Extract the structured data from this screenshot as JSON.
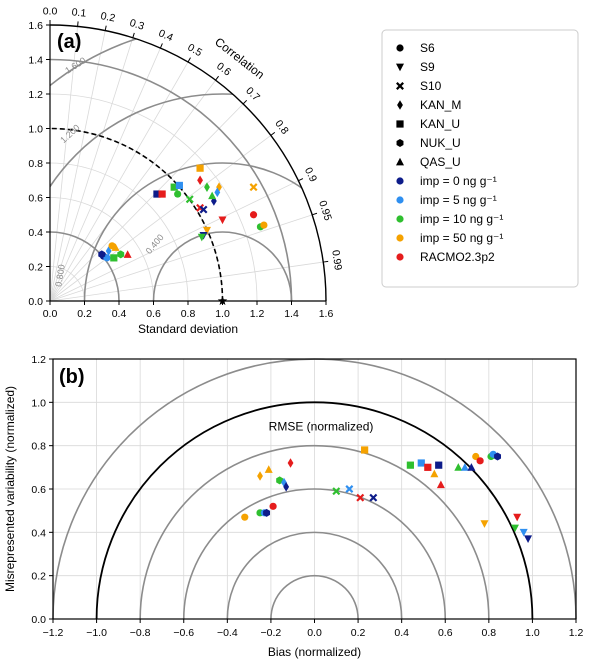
{
  "colors": {
    "imp0": "#0d1c8a",
    "imp5": "#2f8ff0",
    "imp10": "#2fbf2f",
    "imp50": "#f5a200",
    "racmo": "#e51c1c",
    "legend_marker": "#000000",
    "grid": "#d9d9d9",
    "arc": "#8c8c8c"
  },
  "chart_data": [
    {
      "type": "scatter",
      "subtype": "taylor-diagram",
      "panel_label": "(a)",
      "xlabel": "Standard deviation",
      "correlation_label": "Correlation",
      "xlim": [
        0,
        1.6
      ],
      "ylim": [
        0,
        1.6
      ],
      "x_ticks": [
        "0.0",
        "0.2",
        "0.4",
        "0.6",
        "0.8",
        "1.0",
        "1.2",
        "1.4",
        "1.6"
      ],
      "y_ticks": [
        "0.0",
        "0.2",
        "0.4",
        "0.6",
        "0.8",
        "1.0",
        "1.2",
        "1.4",
        "1.6"
      ],
      "correlation_ticks": [
        {
          "r": 0.0,
          "label": "0.0"
        },
        {
          "r": 0.1,
          "label": "0.1"
        },
        {
          "r": 0.2,
          "label": "0.2"
        },
        {
          "r": 0.3,
          "label": "0.3"
        },
        {
          "r": 0.4,
          "label": "0.4"
        },
        {
          "r": 0.5,
          "label": "0.5"
        },
        {
          "r": 0.6,
          "label": "0.6"
        },
        {
          "r": 0.7,
          "label": "0.7"
        },
        {
          "r": 0.8,
          "label": "0.8"
        },
        {
          "r": 0.9,
          "label": "0.9"
        },
        {
          "r": 0.95,
          "label": "0.95"
        },
        {
          "r": 0.99,
          "label": "0.99"
        }
      ],
      "std_arcs": [
        0.4,
        1.4
      ],
      "reference_std": 1.0,
      "rmse_contours": [
        0.4,
        0.8,
        1.2,
        1.6
      ],
      "rmse_labels": [
        {
          "value": 0.4,
          "label": "0.400"
        },
        {
          "value": 0.8,
          "label": "0.800"
        },
        {
          "value": 1.2,
          "label": "1.200"
        },
        {
          "value": 1.6,
          "label": "1.600"
        }
      ],
      "points": [
        {
          "x": 0.31,
          "y": 0.26,
          "shape": "circle",
          "series": "imp0"
        },
        {
          "x": 0.33,
          "y": 0.25,
          "shape": "circle",
          "series": "imp5"
        },
        {
          "x": 0.3,
          "y": 0.27,
          "shape": "hexagon",
          "series": "imp0"
        },
        {
          "x": 0.34,
          "y": 0.29,
          "shape": "diamond",
          "series": "imp5"
        },
        {
          "x": 0.37,
          "y": 0.25,
          "shape": "square",
          "series": "imp10"
        },
        {
          "x": 0.36,
          "y": 0.32,
          "shape": "circle",
          "series": "imp50"
        },
        {
          "x": 0.38,
          "y": 0.31,
          "shape": "triangle",
          "series": "imp50"
        },
        {
          "x": 0.41,
          "y": 0.27,
          "shape": "hexagon",
          "series": "imp10"
        },
        {
          "x": 0.45,
          "y": 0.27,
          "shape": "triangle",
          "series": "racmo"
        },
        {
          "x": 0.62,
          "y": 0.62,
          "shape": "square",
          "series": "imp0"
        },
        {
          "x": 0.65,
          "y": 0.62,
          "shape": "square",
          "series": "racmo"
        },
        {
          "x": 0.72,
          "y": 0.66,
          "shape": "square",
          "series": "imp10"
        },
        {
          "x": 0.75,
          "y": 0.67,
          "shape": "square",
          "series": "imp5"
        },
        {
          "x": 0.74,
          "y": 0.62,
          "shape": "circle",
          "series": "imp10"
        },
        {
          "x": 0.87,
          "y": 0.77,
          "shape": "square",
          "series": "imp50"
        },
        {
          "x": 0.87,
          "y": 0.7,
          "shape": "diamond",
          "series": "racmo"
        },
        {
          "x": 0.81,
          "y": 0.59,
          "shape": "cross",
          "series": "imp10"
        },
        {
          "x": 0.87,
          "y": 0.54,
          "shape": "cross",
          "series": "racmo"
        },
        {
          "x": 0.89,
          "y": 0.53,
          "shape": "cross",
          "series": "imp0"
        },
        {
          "x": 0.91,
          "y": 0.66,
          "shape": "diamond",
          "series": "imp10"
        },
        {
          "x": 0.95,
          "y": 0.58,
          "shape": "diamond",
          "series": "imp0"
        },
        {
          "x": 0.98,
          "y": 0.66,
          "shape": "diamond",
          "series": "imp50"
        },
        {
          "x": 0.97,
          "y": 0.63,
          "shape": "diamond",
          "series": "imp5"
        },
        {
          "x": 0.94,
          "y": 0.61,
          "shape": "triangle",
          "series": "imp10"
        },
        {
          "x": 0.91,
          "y": 0.41,
          "shape": "triangle_down",
          "series": "imp50"
        },
        {
          "x": 0.89,
          "y": 0.38,
          "shape": "triangle_down",
          "series": "imp0"
        },
        {
          "x": 0.88,
          "y": 0.37,
          "shape": "triangle_down",
          "series": "imp10"
        },
        {
          "x": 1.0,
          "y": 0.47,
          "shape": "triangle_down",
          "series": "racmo"
        },
        {
          "x": 1.18,
          "y": 0.66,
          "shape": "cross",
          "series": "imp50"
        },
        {
          "x": 1.18,
          "y": 0.5,
          "shape": "circle",
          "series": "racmo"
        },
        {
          "x": 1.22,
          "y": 0.43,
          "shape": "circle",
          "series": "imp10"
        },
        {
          "x": 1.24,
          "y": 0.44,
          "shape": "circle",
          "series": "imp50"
        }
      ],
      "reference_point": {
        "x": 1.0,
        "y": 0.0,
        "shape": "star"
      }
    },
    {
      "type": "scatter",
      "panel_label": "(b)",
      "xlabel": "Bias (normalized)",
      "ylabel": "Misrepresented variability (normalized)",
      "annotation": "RMSE (normalized)",
      "xlim": [
        -1.2,
        1.2
      ],
      "ylim": [
        0,
        1.2
      ],
      "x_ticks": [
        "−1.2",
        "−1.0",
        "−0.8",
        "−0.6",
        "−0.4",
        "−0.2",
        "0.0",
        "0.2",
        "0.4",
        "0.6",
        "0.8",
        "1.0",
        "1.2"
      ],
      "y_ticks": [
        "0.0",
        "0.2",
        "0.4",
        "0.6",
        "0.8",
        "1.0",
        "1.2"
      ],
      "rmse_circles_gray": [
        0.2,
        0.4,
        0.6,
        0.8,
        1.2
      ],
      "rmse_circle_black": 1.0,
      "points": [
        {
          "x": -0.32,
          "y": 0.47,
          "shape": "circle",
          "series": "imp50"
        },
        {
          "x": -0.25,
          "y": 0.49,
          "shape": "circle",
          "series": "imp10"
        },
        {
          "x": -0.23,
          "y": 0.49,
          "shape": "circle",
          "series": "imp5"
        },
        {
          "x": -0.22,
          "y": 0.49,
          "shape": "hexagon",
          "series": "imp0"
        },
        {
          "x": -0.19,
          "y": 0.52,
          "shape": "circle",
          "series": "racmo"
        },
        {
          "x": -0.25,
          "y": 0.66,
          "shape": "diamond",
          "series": "imp50"
        },
        {
          "x": -0.21,
          "y": 0.69,
          "shape": "triangle",
          "series": "imp50"
        },
        {
          "x": -0.16,
          "y": 0.64,
          "shape": "hexagon",
          "series": "imp10"
        },
        {
          "x": -0.14,
          "y": 0.63,
          "shape": "diamond",
          "series": "imp5"
        },
        {
          "x": -0.13,
          "y": 0.61,
          "shape": "diamond",
          "series": "imp0"
        },
        {
          "x": -0.11,
          "y": 0.72,
          "shape": "diamond",
          "series": "racmo"
        },
        {
          "x": 0.1,
          "y": 0.59,
          "shape": "cross",
          "series": "imp10"
        },
        {
          "x": 0.16,
          "y": 0.6,
          "shape": "cross",
          "series": "imp5"
        },
        {
          "x": 0.21,
          "y": 0.56,
          "shape": "cross",
          "series": "racmo"
        },
        {
          "x": 0.27,
          "y": 0.56,
          "shape": "cross",
          "series": "imp0"
        },
        {
          "x": 0.23,
          "y": 0.78,
          "shape": "square",
          "series": "imp50"
        },
        {
          "x": 0.44,
          "y": 0.71,
          "shape": "square",
          "series": "imp10"
        },
        {
          "x": 0.49,
          "y": 0.72,
          "shape": "square",
          "series": "imp5"
        },
        {
          "x": 0.52,
          "y": 0.7,
          "shape": "square",
          "series": "racmo"
        },
        {
          "x": 0.57,
          "y": 0.71,
          "shape": "square",
          "series": "imp0"
        },
        {
          "x": 0.55,
          "y": 0.67,
          "shape": "triangle",
          "series": "imp50"
        },
        {
          "x": 0.58,
          "y": 0.62,
          "shape": "triangle",
          "series": "racmo"
        },
        {
          "x": 0.66,
          "y": 0.7,
          "shape": "triangle",
          "series": "imp10"
        },
        {
          "x": 0.69,
          "y": 0.7,
          "shape": "triangle",
          "series": "imp5"
        },
        {
          "x": 0.72,
          "y": 0.7,
          "shape": "triangle",
          "series": "imp0"
        },
        {
          "x": 0.74,
          "y": 0.75,
          "shape": "circle",
          "series": "imp50"
        },
        {
          "x": 0.76,
          "y": 0.73,
          "shape": "circle",
          "series": "racmo"
        },
        {
          "x": 0.81,
          "y": 0.75,
          "shape": "circle",
          "series": "imp10"
        },
        {
          "x": 0.82,
          "y": 0.76,
          "shape": "circle",
          "series": "imp5"
        },
        {
          "x": 0.84,
          "y": 0.75,
          "shape": "hexagon",
          "series": "imp0"
        },
        {
          "x": 0.78,
          "y": 0.44,
          "shape": "triangle_down",
          "series": "imp50"
        },
        {
          "x": 0.92,
          "y": 0.42,
          "shape": "triangle_down",
          "series": "imp10"
        },
        {
          "x": 0.93,
          "y": 0.47,
          "shape": "triangle_down",
          "series": "racmo"
        },
        {
          "x": 0.96,
          "y": 0.4,
          "shape": "triangle_down",
          "series": "imp5"
        },
        {
          "x": 0.98,
          "y": 0.37,
          "shape": "triangle_down",
          "series": "imp0"
        }
      ]
    }
  ],
  "legend": {
    "shape_entries": [
      {
        "shape": "circle",
        "label": "S6"
      },
      {
        "shape": "triangle_down",
        "label": "S9"
      },
      {
        "shape": "cross",
        "label": "S10"
      },
      {
        "shape": "diamond",
        "label": "KAN_M"
      },
      {
        "shape": "square",
        "label": "KAN_U"
      },
      {
        "shape": "hexagon",
        "label": "NUK_U"
      },
      {
        "shape": "triangle",
        "label": "QAS_U"
      }
    ],
    "color_entries": [
      {
        "series": "imp0",
        "label": "imp = 0 ng g⁻¹"
      },
      {
        "series": "imp5",
        "label": "imp = 5 ng g⁻¹"
      },
      {
        "series": "imp10",
        "label": "imp = 10 ng g⁻¹"
      },
      {
        "series": "imp50",
        "label": "imp = 50 ng g⁻¹"
      },
      {
        "series": "racmo",
        "label": "RACMO2.3p2"
      }
    ]
  }
}
